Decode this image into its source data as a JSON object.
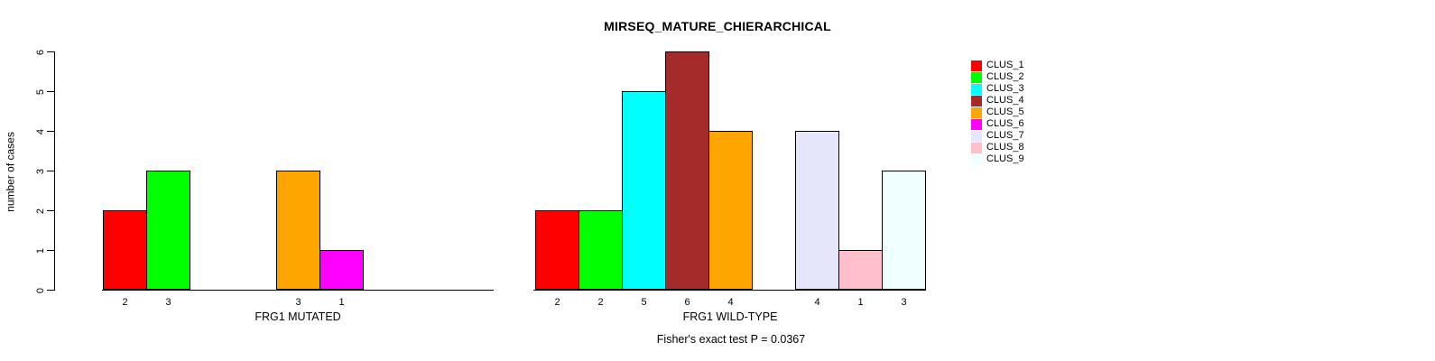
{
  "chart_data": {
    "type": "bar",
    "title": "MIRSEQ_MATURE_CHIERARCHICAL",
    "ylabel": "number of cases",
    "ylim": [
      0,
      6
    ],
    "yticks": [
      0,
      1,
      2,
      3,
      4,
      5,
      6
    ],
    "grid": false,
    "legend_position": "right",
    "bar_value_labels_shown": true,
    "clusters": [
      {
        "name": "CLUS_1",
        "color": "#FF0000"
      },
      {
        "name": "CLUS_2",
        "color": "#00FF00"
      },
      {
        "name": "CLUS_3",
        "color": "#00FFFF"
      },
      {
        "name": "CLUS_4",
        "color": "#A52A2A"
      },
      {
        "name": "CLUS_5",
        "color": "#FFA500"
      },
      {
        "name": "CLUS_6",
        "color": "#FF00FF"
      },
      {
        "name": "CLUS_7",
        "color": "#E6E6FA"
      },
      {
        "name": "CLUS_8",
        "color": "#FFC0CB"
      },
      {
        "name": "CLUS_9",
        "color": "#F0FFFF"
      }
    ],
    "panels": [
      {
        "xlabel": "FRG1 MUTATED",
        "values": [
          2,
          3,
          0,
          0,
          3,
          1,
          0,
          0,
          0
        ]
      },
      {
        "xlabel": "FRG1 WILD-TYPE",
        "values": [
          2,
          2,
          5,
          6,
          4,
          0,
          4,
          1,
          3
        ]
      }
    ],
    "annotation": "Fisher's exact test P = 0.0367"
  }
}
